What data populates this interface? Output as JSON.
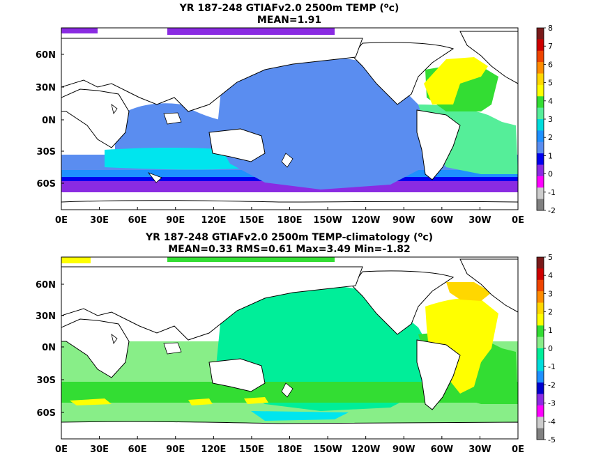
{
  "chart_data": [
    {
      "type": "heatmap",
      "title_main": "YR 187-248 GTIAFv2.0 2500m TEMP (",
      "title_unit_sup": "o",
      "title_unit_end": "c)",
      "subtitle": "MEAN=1.91",
      "x_tick_labels": [
        "0E",
        "30E",
        "60E",
        "90E",
        "120E",
        "150E",
        "180E",
        "150W",
        "120W",
        "90W",
        "60W",
        "30W",
        "0E"
      ],
      "y_tick_labels": [
        "60N",
        "30N",
        "0N",
        "30S",
        "60S"
      ],
      "colorbar_labels": [
        "8",
        "7",
        "6",
        "5",
        "4",
        "3",
        "2",
        "1",
        "0",
        "-1",
        "-2"
      ],
      "colorbar_colors": [
        "#7a1a1a",
        "#cc0000",
        "#ee4400",
        "#ff8c00",
        "#ffd700",
        "#ffff00",
        "#33dd33",
        "#55ee99",
        "#00dcdc",
        "#1e90ff",
        "#5a8df0",
        "#0000ee",
        "#8a2be2",
        "#ff00ff",
        "#cccccc",
        "#808080"
      ]
    },
    {
      "type": "heatmap",
      "title_main": "YR 187-248 GTIAFv2.0 2500m TEMP-climatology (",
      "title_unit_sup": "o",
      "title_unit_end": "c)",
      "subtitle": "MEAN=0.33   RMS=0.61   Max=3.49   Min=-1.82",
      "x_tick_labels": [
        "0E",
        "30E",
        "60E",
        "90E",
        "120E",
        "150E",
        "180E",
        "150W",
        "120W",
        "90W",
        "60W",
        "30W",
        "0E"
      ],
      "y_tick_labels": [
        "60N",
        "30N",
        "0N",
        "30S",
        "60S"
      ],
      "colorbar_labels": [
        "5",
        "4",
        "3",
        "2",
        "1",
        "0",
        "-1",
        "-2",
        "-3",
        "-4",
        "-5"
      ],
      "colorbar_colors": [
        "#7a1a1a",
        "#cc0000",
        "#ee4400",
        "#ff8c00",
        "#ffd700",
        "#ffff00",
        "#33dd33",
        "#88ee88",
        "#00ee99",
        "#00dcdc",
        "#1e90ff",
        "#0000cd",
        "#8a2be2",
        "#ff00ff",
        "#cccccc",
        "#808080"
      ]
    }
  ]
}
